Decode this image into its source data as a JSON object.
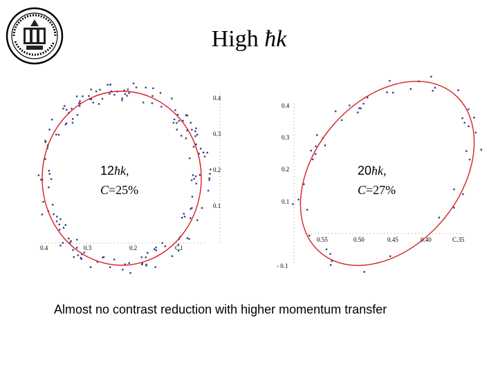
{
  "slide": {
    "title_text": "High ",
    "title_symbol": "ħk",
    "caption": "Almost no contrast reduction with higher momentum transfer"
  },
  "colors": {
    "data_points": "#3a3a8c",
    "fit_curve": "#d62020",
    "axis": "#999999"
  },
  "chart_data": [
    {
      "type": "scatter",
      "label_momentum": "12",
      "label_unit": "ħk,",
      "label_c": "C",
      "label_value": "=25%",
      "x_ticks": [
        "0.4",
        "0.3",
        "0.2",
        "C.l"
      ],
      "y_ticks": [
        "0.4",
        "0.3",
        "0.2",
        "0.1"
      ]
    },
    {
      "type": "scatter",
      "label_momentum": "20",
      "label_unit": "ħk,",
      "label_c": "C",
      "label_value": "=27%",
      "x_ticks": [
        "0.55",
        "0.50",
        "0.45",
        "0.40",
        "C.35"
      ],
      "y_ticks": [
        "0.4",
        "0.3",
        "0.2",
        "0.1",
        "- 0.1"
      ]
    }
  ]
}
